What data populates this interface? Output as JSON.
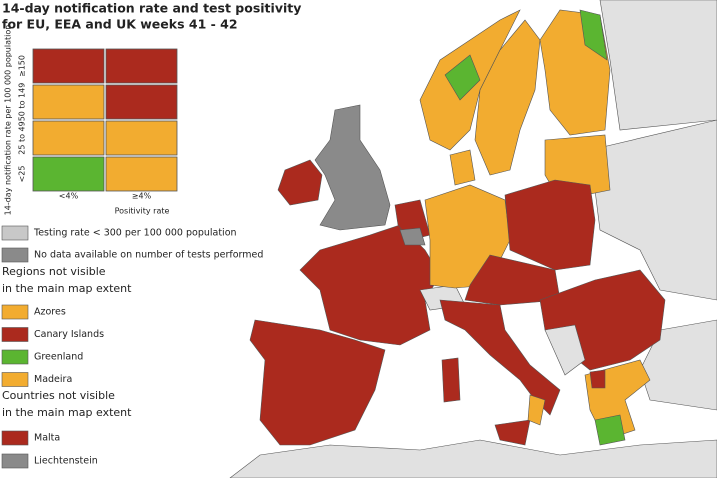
{
  "title_lines": [
    "14-day notification rate and test positivity",
    "for EU, EEA and UK weeks 41 - 42"
  ],
  "matrix": {
    "y_axis_label": "14-day notification rate per 100 000 population",
    "row_labels": [
      "≥150",
      "50 to 149",
      "25 to 49",
      "<25"
    ],
    "col_labels": [
      "<4%",
      "≥4%"
    ],
    "x_axis_label": "Positivity rate",
    "cell_colors": [
      [
        "#ab2a1e",
        "#ab2a1e"
      ],
      [
        "#f2ac30",
        "#ab2a1e"
      ],
      [
        "#f2ac30",
        "#f2ac30"
      ],
      [
        "#5bb531",
        "#f2ac30"
      ]
    ]
  },
  "legend": [
    {
      "label": "Testing rate < 300 per 100 000 population",
      "color": "#c8c8c8"
    },
    {
      "label": "No data available on number of tests performed",
      "color": "#8a8a8a"
    }
  ],
  "regions_heading": [
    "Regions not visible",
    "in the main map extent"
  ],
  "regions": [
    {
      "label": "Azores",
      "color": "#f2ac30"
    },
    {
      "label": "Canary Islands",
      "color": "#ab2a1e"
    },
    {
      "label": "Greenland",
      "color": "#5bb531"
    },
    {
      "label": "Madeira",
      "color": "#f2ac30"
    }
  ],
  "countries_heading": [
    "Countries not visible",
    "in the main map extent"
  ],
  "countries": [
    {
      "label": "Malta",
      "color": "#ab2a1e"
    },
    {
      "label": "Liechtenstein",
      "color": "#8a8a8a"
    }
  ]
}
